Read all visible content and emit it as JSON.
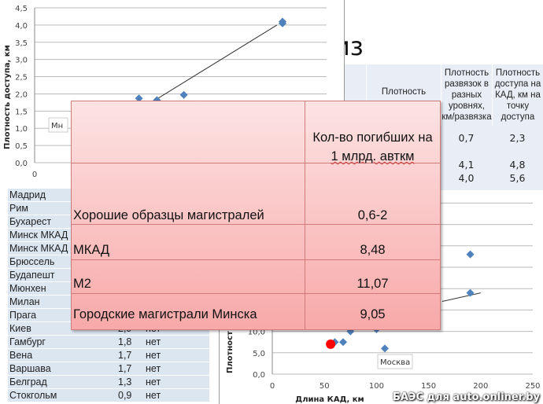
{
  "slide_title": "из",
  "top_table": {
    "headers": [
      "Плотность",
      "Плотность развязок в разных уровнях, км/развязка",
      "Плотность доступа на КАД, км на точку доступа"
    ],
    "rows": [
      [
        "0,7",
        "2,3"
      ],
      [
        "",
        ""
      ],
      [
        "4,1",
        "4,8"
      ],
      [
        "4,0",
        "5,6"
      ]
    ]
  },
  "chart_data": [
    {
      "type": "scatter",
      "title": "",
      "ylabel": "Плотность доступа, км",
      "xlabel": "",
      "ylim": [
        0,
        4.5
      ],
      "y_ticks": [
        "0,0",
        "0,5",
        "1,0",
        "1,5",
        "2,0",
        "2,5",
        "3,0",
        "3,5",
        "4,0",
        "4,5"
      ],
      "x_ticks": [
        "0"
      ],
      "annotation": "Мн",
      "points": [
        {
          "x": 0.9,
          "y": 1.87
        },
        {
          "x": 1.1,
          "y": 1.82
        },
        {
          "x": 1.4,
          "y": 1.97
        },
        {
          "x": 2.5,
          "y": 4.1
        },
        {
          "x": 2.5,
          "y": 4.05
        }
      ],
      "trendline": [
        {
          "x": 1.3,
          "y": 1.75
        },
        {
          "x": 2.7,
          "y": 4.0
        }
      ]
    },
    {
      "type": "scatter",
      "title": "",
      "ylabel": "Плотност",
      "xlabel": "Длина КАД, км",
      "xlim": [
        0,
        250
      ],
      "x_ticks": [
        "0",
        "50",
        "100",
        "150",
        "200",
        "250"
      ],
      "y_ticks": [
        "0,0",
        "5,0",
        "10,0"
      ],
      "annotation": "Москва",
      "points": [
        {
          "x": 60,
          "y": 7.5
        },
        {
          "x": 68,
          "y": 7.5
        },
        {
          "x": 75,
          "y": 10
        },
        {
          "x": 100,
          "y": 10.5
        },
        {
          "x": 108,
          "y": 6
        },
        {
          "x": 190,
          "y": 28
        },
        {
          "x": 190,
          "y": 19
        }
      ],
      "highlight_point": {
        "x": 56,
        "y": 7,
        "color": "#ff0000"
      },
      "trendline": [
        {
          "x": 163,
          "y": 17
        },
        {
          "x": 200,
          "y": 19
        }
      ]
    }
  ],
  "left_table": {
    "rows": [
      {
        "city": "Мадрид",
        "value": "",
        "flag": ""
      },
      {
        "city": "Рим",
        "value": "",
        "flag": ""
      },
      {
        "city": "Бухарест",
        "value": "",
        "flag": ""
      },
      {
        "city": "Минск МКАД",
        "value": "",
        "flag": ""
      },
      {
        "city": "Минск МКАД",
        "value": "",
        "flag": ""
      },
      {
        "city": "Брюссель",
        "value": "",
        "flag": ""
      },
      {
        "city": "Будапешт",
        "value": "",
        "flag": ""
      },
      {
        "city": "Мюнхен",
        "value": "",
        "flag": ""
      },
      {
        "city": "Милан",
        "value": "",
        "flag": ""
      },
      {
        "city": "Прага",
        "value": "",
        "flag": ""
      },
      {
        "city": "Киев",
        "value": "2,9",
        "flag": "нет"
      },
      {
        "city": "Гамбург",
        "value": "1,8",
        "flag": "нет"
      },
      {
        "city": "Вена",
        "value": "1,7",
        "flag": "нет"
      },
      {
        "city": "Варшава",
        "value": "1,7",
        "flag": "нет"
      },
      {
        "city": "Белград",
        "value": "1,3",
        "flag": "нет"
      },
      {
        "city": "Стокгольм",
        "value": "0,9",
        "flag": "нет"
      }
    ]
  },
  "overlay_table": {
    "header": [
      "Кол-во погибших на",
      "1 млрд. авткм"
    ],
    "rows": [
      {
        "label": "Хорошие образцы магистралей",
        "value": "0,6-2"
      },
      {
        "label": "МКАД",
        "value": "8,48"
      },
      {
        "label": "М2",
        "value": "11,07"
      },
      {
        "label": "Городские магистрали Минска",
        "value": "9,05"
      }
    ]
  },
  "watermark": "БАЭС для auto.onliner.by",
  "colors": {
    "marker": "#4f81bd",
    "overlay_border": "#d07a7a",
    "table_bg": "#dce6f1"
  }
}
